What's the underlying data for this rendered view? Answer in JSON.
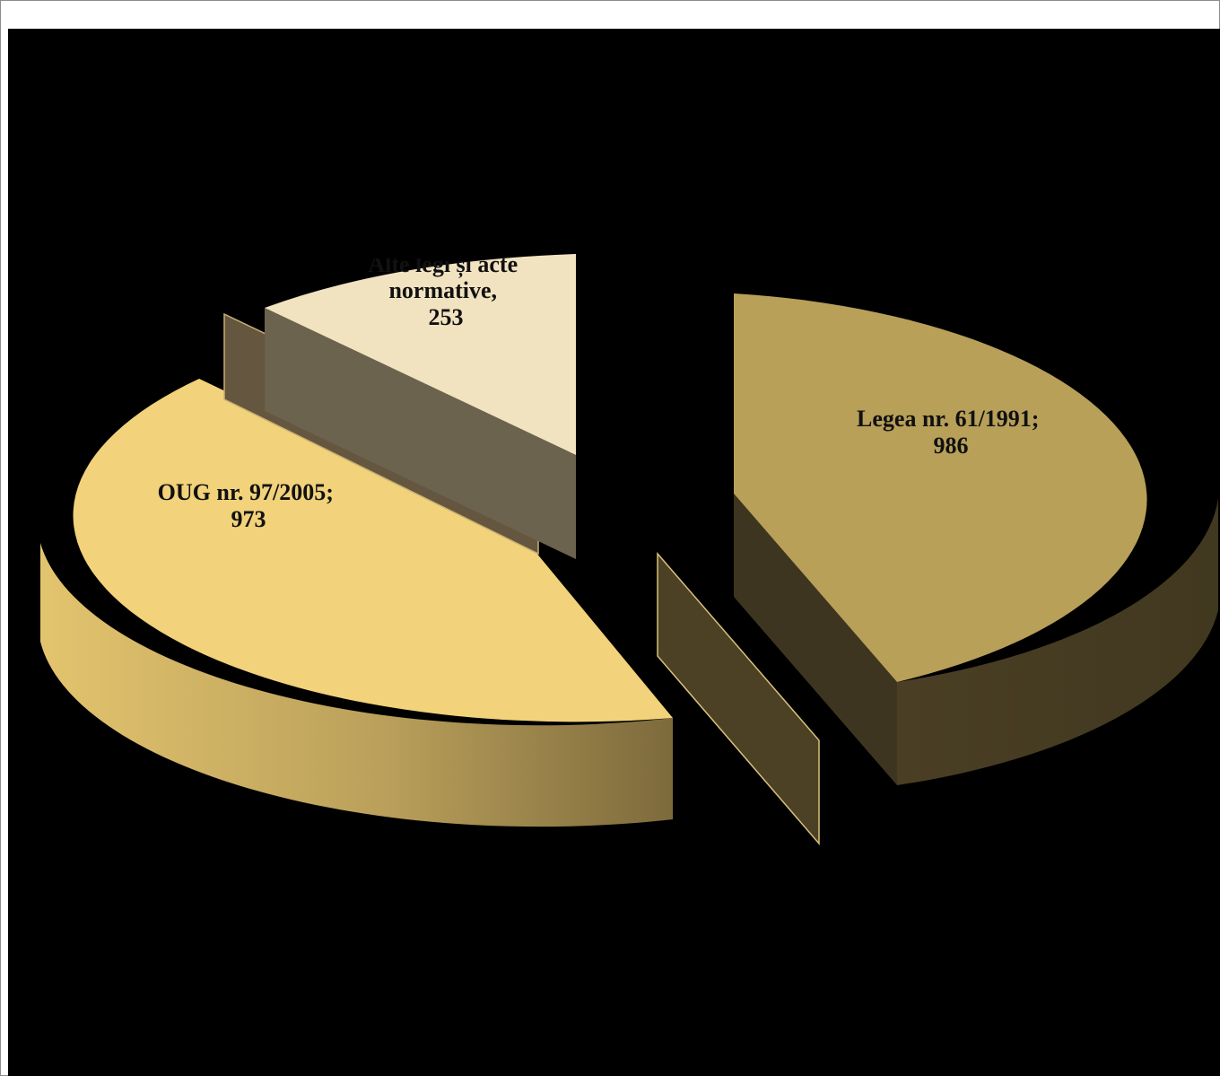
{
  "chart_data": {
    "type": "pie",
    "style": "3d-exploded",
    "slices": [
      {
        "name": "Legea nr. 61/1991",
        "value": 986,
        "label_lines": [
          "Legea nr. 61/1991;",
          "986"
        ],
        "color": "#b8a059"
      },
      {
        "name": "OUG nr. 97/2005",
        "value": 973,
        "label_lines": [
          "OUG nr. 97/2005;",
          "973"
        ],
        "color": "#f2d27a"
      },
      {
        "name": "Alte legi și acte normative",
        "value": 253,
        "label_lines": [
          "Alte legi și acte",
          "normative,",
          "253"
        ],
        "color": "#f2e3c0"
      }
    ],
    "legend": "none",
    "background": "#000000"
  }
}
